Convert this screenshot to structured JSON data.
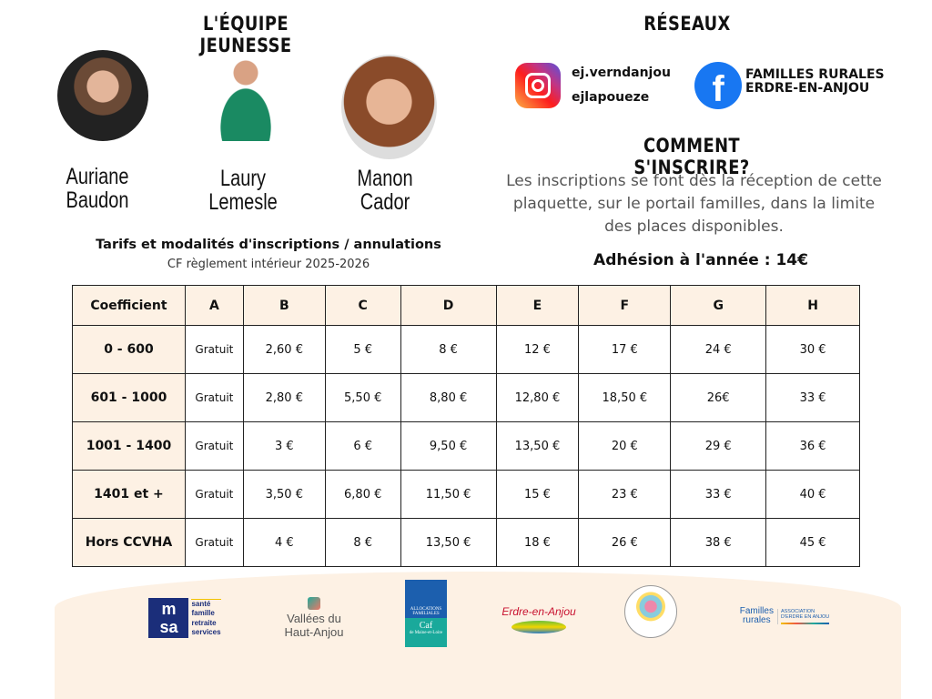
{
  "team": {
    "title": "L'ÉQUIPE JEUNESSE",
    "members": [
      {
        "first": "Auriane",
        "last": "Baudon"
      },
      {
        "first": "Laury",
        "last": "Lemesle"
      },
      {
        "first": "Manon",
        "last": "Cador"
      }
    ]
  },
  "networks": {
    "title": "RÉSEAUX",
    "instagram": [
      "ej.verndanjou",
      "ejlapoueze"
    ],
    "facebook": [
      "FAMILLES RURALES",
      "ERDRE-EN-ANJOU"
    ]
  },
  "signup": {
    "title": "COMMENT S'INSCRIRE?",
    "text": "Les inscriptions se font dès la réception de cette plaquette, sur le portail familles, dans la limite des places disponibles.",
    "membership": "Adhésion à l'année : 14€"
  },
  "tarifs": {
    "title": "Tarifs et modalités d'inscriptions / annulations",
    "subtitle": "CF règlement intérieur 2025-2026",
    "headers": [
      "Coefficient",
      "A",
      "B",
      "C",
      "D",
      "E",
      "F",
      "G",
      "H"
    ],
    "rows": [
      [
        "0 - 600",
        "Gratuit",
        "2,60 €",
        "5 €",
        "8 €",
        "12 €",
        "17 €",
        "24 €",
        "30 €"
      ],
      [
        "601 - 1000",
        "Gratuit",
        "2,80 €",
        "5,50 €",
        "8,80 €",
        "12,80 €",
        "18,50 €",
        "26€",
        "33 €"
      ],
      [
        "1001 - 1400",
        "Gratuit",
        "3 €",
        "6 €",
        "9,50 €",
        "13,50 €",
        "20 €",
        "29 €",
        "36 €"
      ],
      [
        "1401 et +",
        "Gratuit",
        "3,50 €",
        "6,80 €",
        "11,50 €",
        "15 €",
        "23 €",
        "33 €",
        "40 €"
      ],
      [
        "Hors CCVHA",
        "Gratuit",
        "4 €",
        "8 €",
        "13,50 €",
        "18 €",
        "26 €",
        "38 €",
        "45 €"
      ]
    ]
  },
  "logos": {
    "msa": [
      "santé",
      "famille",
      "retraite",
      "services"
    ],
    "vha": [
      "Vallées du",
      "Haut-Anjou"
    ],
    "caf": [
      "ALLOCATIONS FAMILIALES",
      "Caf",
      "de Maine-et-Loire"
    ],
    "erdre": "Erdre-en-Anjou",
    "fr": [
      "Familles",
      "rurales",
      "ASSOCIATION",
      "D'ERDRE EN ANJOU"
    ]
  },
  "colors": {
    "cream": "#fdf1e4",
    "facebook": "#1877f2",
    "caf": "#1aa99b"
  }
}
